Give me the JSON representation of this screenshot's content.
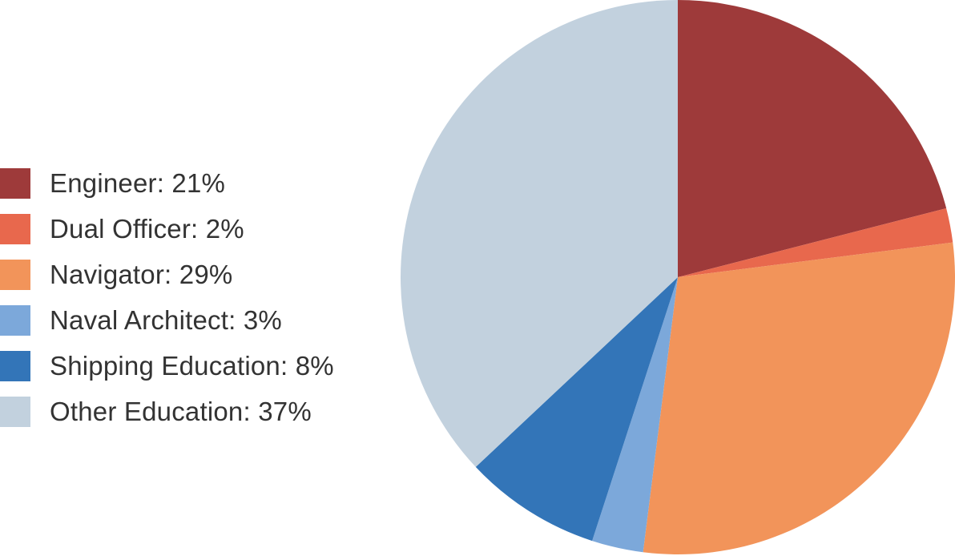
{
  "chart_data": {
    "type": "pie",
    "title": "",
    "start_angle": "12 o'clock",
    "direction": "clockwise",
    "legend_position": "left",
    "slices": [
      {
        "name": "Engineer",
        "value": 21,
        "label": "Engineer: 21%",
        "color": "#9e3a3a"
      },
      {
        "name": "Dual Officer",
        "value": 2,
        "label": "Dual Officer: 2%",
        "color": "#e8684d"
      },
      {
        "name": "Navigator",
        "value": 29,
        "label": "Navigator: 29%",
        "color": "#f2945a"
      },
      {
        "name": "Naval Architect",
        "value": 3,
        "label": "Naval Architect: 3%",
        "color": "#7ca8da"
      },
      {
        "name": "Shipping Education",
        "value": 8,
        "label": "Shipping Education: 8%",
        "color": "#3375b8"
      },
      {
        "name": "Other Education",
        "value": 37,
        "label": "Other Education: 37%",
        "color": "#c2d1de"
      }
    ]
  }
}
